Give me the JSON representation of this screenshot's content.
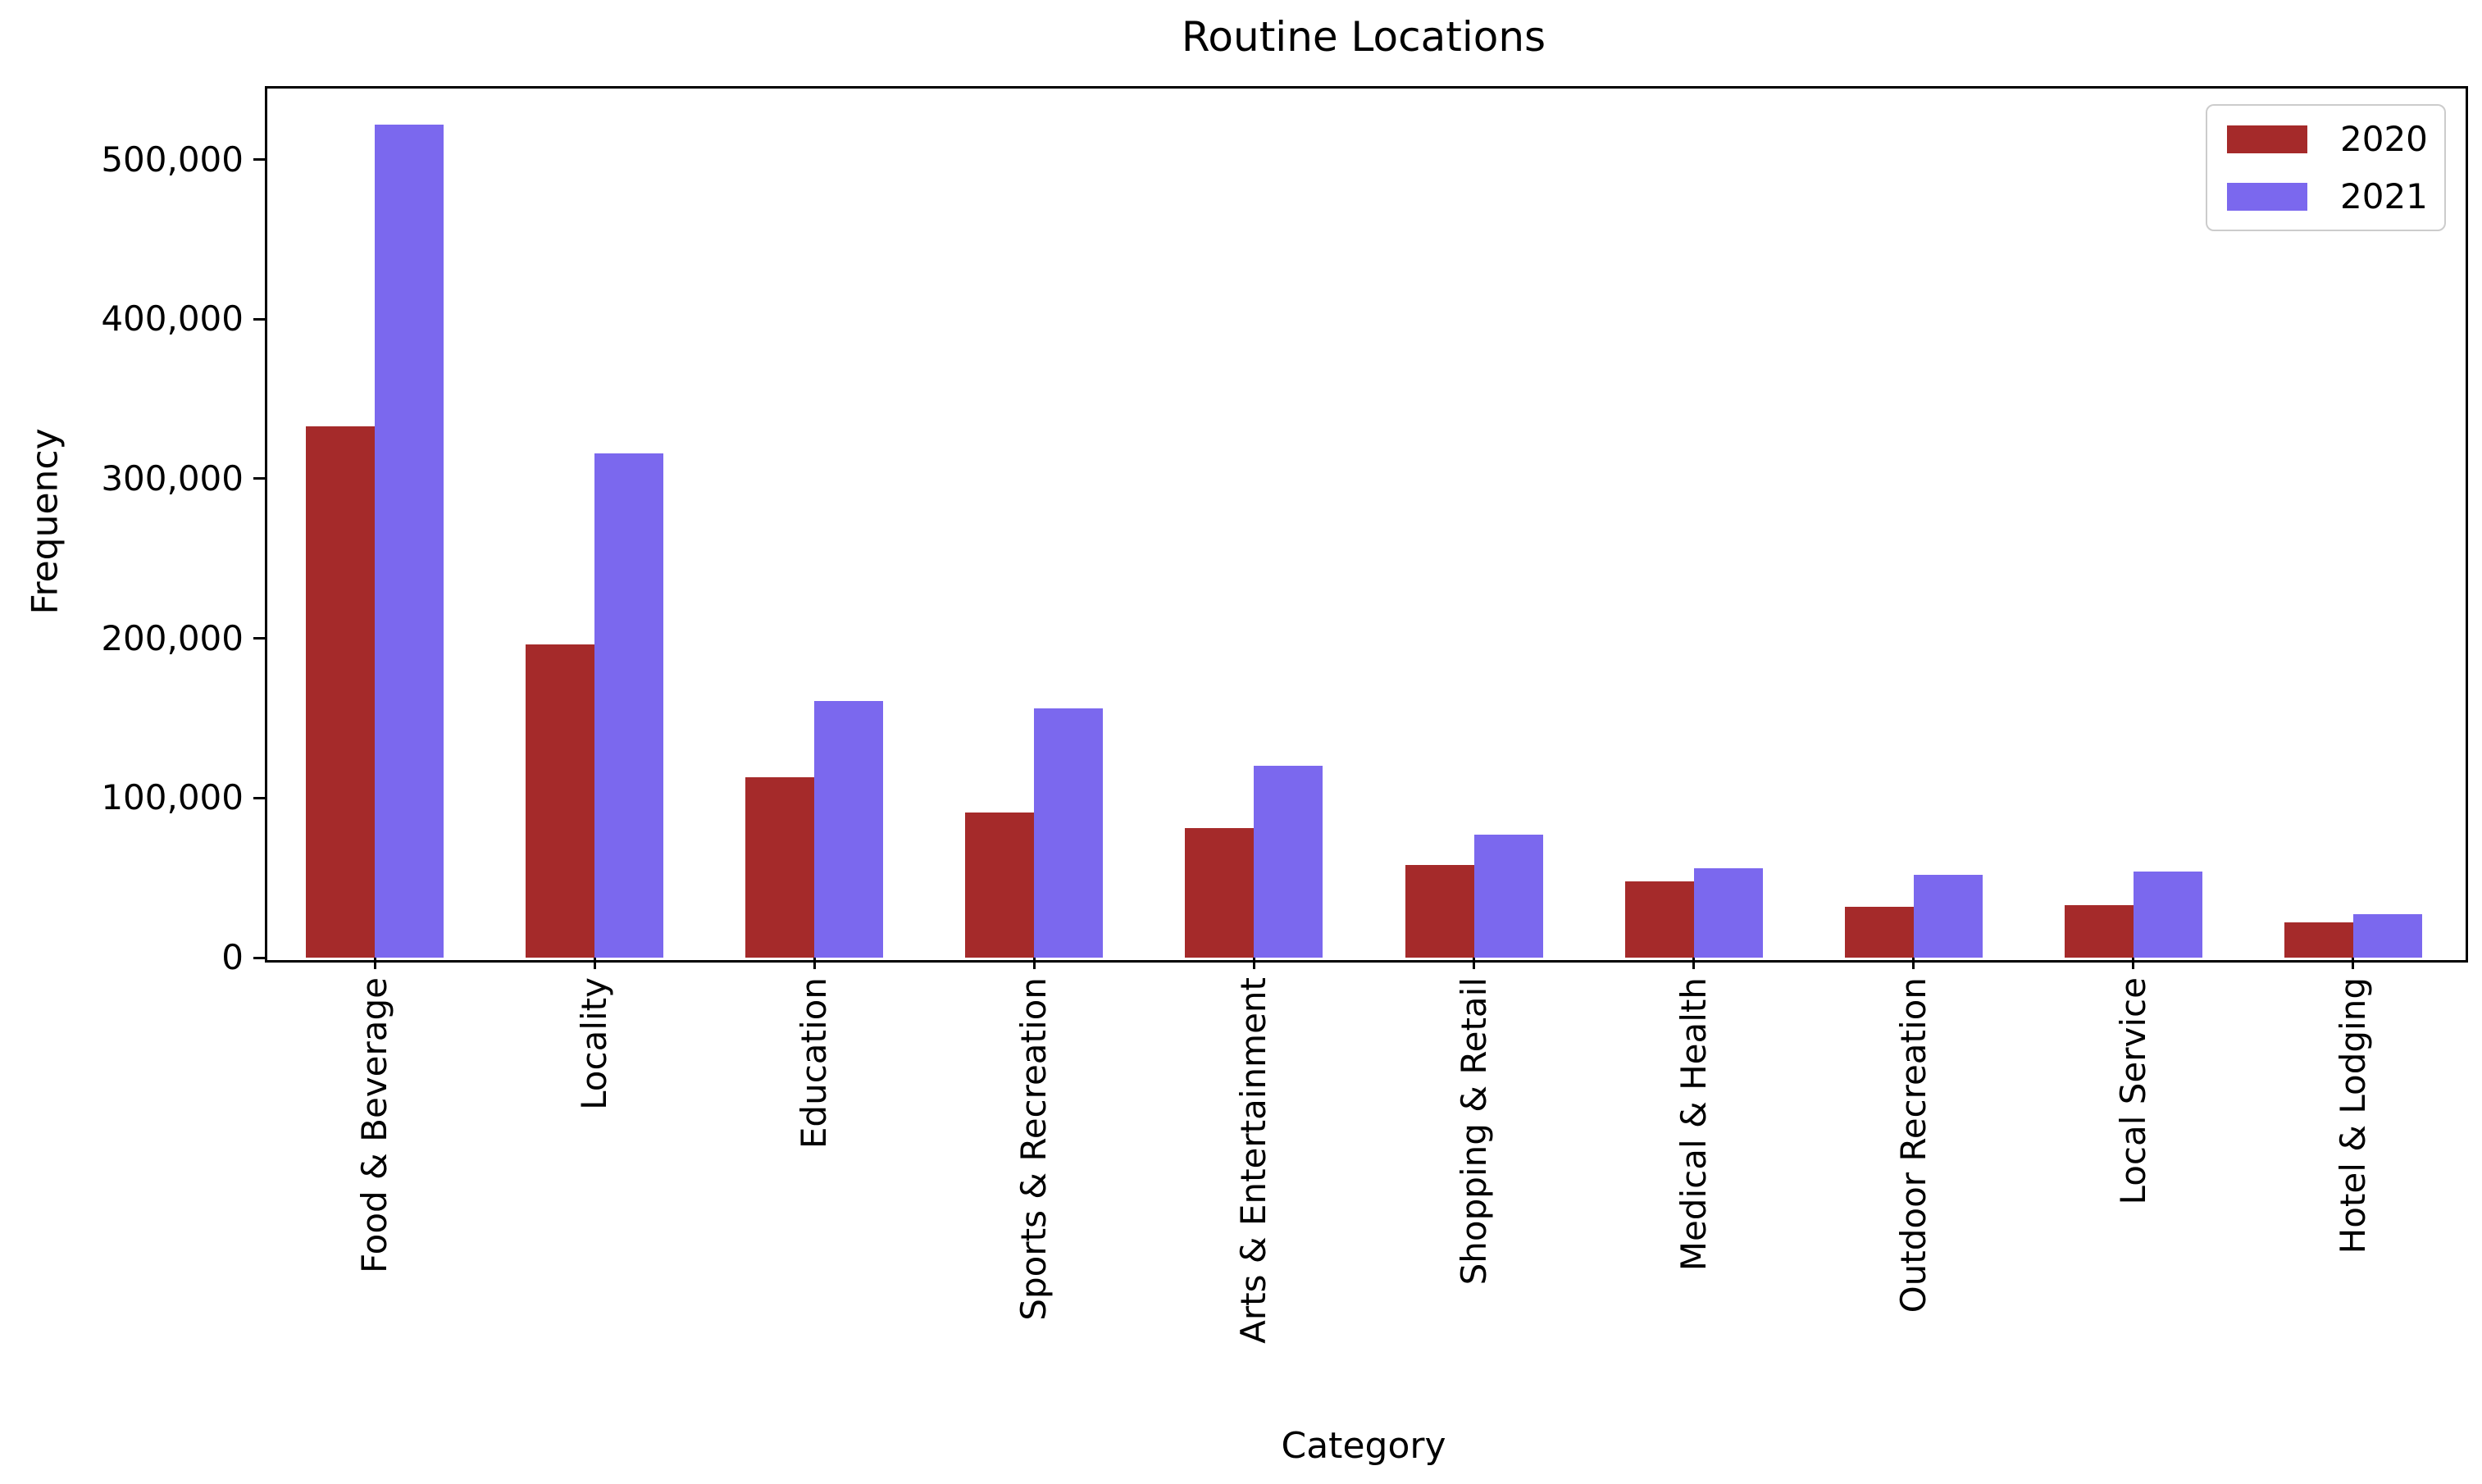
{
  "chart_data": {
    "type": "bar",
    "title": "Routine Locations",
    "xlabel": "Category",
    "ylabel": "Frequency",
    "categories": [
      "Food & Beverage",
      "Locality",
      "Education",
      "Sports & Recreation",
      "Arts & Entertainment",
      "Shopping & Retail",
      "Medical & Health",
      "Outdoor Recreation",
      "Local Service",
      "Hotel & Lodging"
    ],
    "series": [
      {
        "name": "2020",
        "color": "#a52a2a",
        "values": [
          333000,
          196000,
          113000,
          91000,
          81000,
          58000,
          48000,
          32000,
          33000,
          22000
        ]
      },
      {
        "name": "2021",
        "color": "#7b68ee",
        "values": [
          522000,
          316000,
          161000,
          156000,
          120000,
          77000,
          56000,
          52000,
          54000,
          27000
        ]
      }
    ],
    "ylim": [
      0,
      546000
    ],
    "yticks": [
      0,
      100000,
      200000,
      300000,
      400000,
      500000
    ],
    "ytick_labels": [
      "0",
      "100,000",
      "200,000",
      "300,000",
      "400,000",
      "500,000"
    ],
    "xtick_label_rotation_deg": 90,
    "grid": false,
    "legend_position": "upper right",
    "axis_color": "#000000",
    "background_color": "#ffffff"
  }
}
